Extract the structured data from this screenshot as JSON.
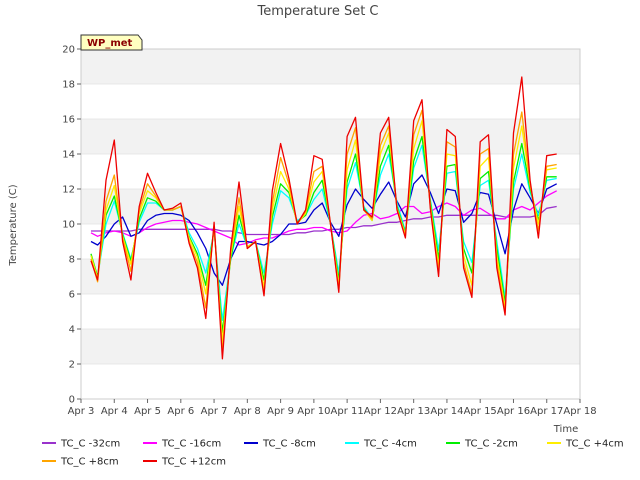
{
  "chart_data": {
    "type": "line",
    "title": "Temperature Set C",
    "xlabel": "Time",
    "ylabel": "Temperature (C)",
    "badge": "WP_met",
    "x_ticks": [
      "Apr 3",
      "Apr 4",
      "Apr 5",
      "Apr 6",
      "Apr 7",
      "Apr 8",
      "Apr 9",
      "Apr 10",
      "Apr 11",
      "Apr 12",
      "Apr 13",
      "Apr 14",
      "Apr 15",
      "Apr 16",
      "Apr 17",
      "Apr 18"
    ],
    "xlim": [
      3,
      18
    ],
    "ylim": [
      0,
      20
    ],
    "y_ticks": [
      0,
      2,
      4,
      6,
      8,
      10,
      12,
      14,
      16,
      18,
      20
    ],
    "grid": "horizontal bands",
    "legend_position": "bottom",
    "x_days": [
      3.3,
      3.5,
      3.75,
      4.0,
      4.25,
      4.5,
      4.75,
      5.0,
      5.25,
      5.5,
      5.75,
      6.0,
      6.25,
      6.5,
      6.75,
      7.0,
      7.25,
      7.5,
      7.75,
      8.0,
      8.25,
      8.5,
      8.75,
      9.0,
      9.25,
      9.5,
      9.75,
      10.0,
      10.25,
      10.5,
      10.75,
      11.0,
      11.25,
      11.5,
      11.75,
      12.0,
      12.25,
      12.5,
      12.75,
      13.0,
      13.25,
      13.5,
      13.75,
      14.0,
      14.25,
      14.5,
      14.75,
      15.0,
      15.25,
      15.5,
      15.75,
      16.0,
      16.25,
      16.5,
      16.75,
      17.0,
      17.3
    ],
    "series": [
      {
        "name": "TC_C -32cm",
        "color": "#9932cc",
        "values": [
          9.6,
          9.6,
          9.6,
          9.6,
          9.6,
          9.6,
          9.7,
          9.7,
          9.7,
          9.7,
          9.7,
          9.7,
          9.7,
          9.7,
          9.7,
          9.7,
          9.6,
          9.6,
          9.5,
          9.4,
          9.4,
          9.4,
          9.4,
          9.4,
          9.4,
          9.5,
          9.5,
          9.6,
          9.6,
          9.7,
          9.7,
          9.8,
          9.8,
          9.9,
          9.9,
          10.0,
          10.1,
          10.1,
          10.2,
          10.3,
          10.3,
          10.4,
          10.4,
          10.5,
          10.5,
          10.5,
          10.5,
          10.5,
          10.5,
          10.5,
          10.4,
          10.4,
          10.4,
          10.4,
          10.5,
          10.9,
          11.0
        ]
      },
      {
        "name": "TC_C -16cm",
        "color": "#ff00ff",
        "values": [
          9.5,
          9.3,
          9.5,
          9.6,
          9.5,
          9.3,
          9.5,
          9.8,
          10.0,
          10.1,
          10.2,
          10.2,
          10.1,
          10.0,
          9.8,
          9.6,
          9.4,
          9.2,
          8.8,
          8.9,
          9.1,
          9.2,
          9.2,
          9.4,
          9.6,
          9.7,
          9.7,
          9.8,
          9.8,
          9.6,
          9.5,
          9.6,
          10.1,
          10.5,
          10.6,
          10.3,
          10.4,
          10.6,
          11.0,
          11.0,
          10.6,
          10.7,
          11.0,
          11.2,
          11.0,
          10.5,
          10.8,
          10.9,
          10.6,
          10.3,
          10.3,
          10.8,
          11.0,
          10.8,
          11.2,
          11.6,
          11.9
        ]
      },
      {
        "name": "TC_C -8cm",
        "color": "#0000cd",
        "values": [
          9.0,
          8.8,
          9.3,
          10.0,
          10.4,
          9.3,
          9.5,
          10.2,
          10.5,
          10.6,
          10.6,
          10.5,
          10.2,
          9.5,
          8.6,
          7.2,
          6.5,
          8.0,
          9.0,
          9.0,
          8.9,
          8.8,
          9.0,
          9.4,
          10.0,
          10.0,
          10.1,
          10.8,
          11.2,
          10.1,
          9.3,
          11.1,
          12.0,
          11.4,
          10.9,
          11.7,
          12.4,
          11.3,
          10.4,
          12.3,
          12.8,
          11.8,
          10.6,
          12.0,
          11.9,
          10.1,
          10.6,
          11.8,
          11.7,
          10.0,
          8.3,
          10.8,
          12.3,
          11.5,
          10.6,
          12.0,
          12.3
        ]
      },
      {
        "name": "TC_C -4cm",
        "color": "#00ffff",
        "values": [
          8.2,
          7.0,
          10.0,
          11.3,
          9.5,
          8.0,
          10.1,
          11.2,
          11.2,
          10.8,
          10.8,
          11.0,
          9.5,
          8.6,
          7.2,
          9.6,
          4.5,
          8.0,
          10.0,
          8.7,
          9.0,
          7.2,
          10.0,
          11.9,
          11.5,
          10.2,
          10.5,
          11.4,
          12.0,
          10.0,
          7.2,
          12.0,
          13.5,
          11.0,
          10.3,
          12.8,
          14.0,
          11.2,
          9.6,
          13.2,
          14.5,
          11.4,
          8.5,
          12.9,
          13.0,
          9.0,
          7.8,
          12.2,
          12.5,
          9.0,
          5.8,
          12.0,
          14.0,
          11.8,
          10.5,
          12.5,
          12.6
        ]
      },
      {
        "name": "TC_C -2cm",
        "color": "#00ee00",
        "values": [
          8.3,
          7.0,
          10.5,
          11.6,
          9.4,
          7.9,
          10.3,
          11.5,
          11.3,
          10.8,
          10.8,
          11.0,
          9.3,
          8.3,
          6.5,
          9.7,
          3.8,
          8.0,
          10.5,
          8.7,
          9.0,
          6.8,
          10.4,
          12.3,
          11.8,
          10.1,
          10.5,
          11.8,
          12.5,
          10.0,
          6.8,
          12.4,
          14.0,
          10.9,
          10.2,
          13.3,
          14.5,
          11.0,
          9.5,
          13.6,
          15.0,
          11.3,
          8.0,
          13.3,
          13.4,
          8.6,
          7.2,
          12.6,
          13.0,
          8.6,
          5.5,
          12.4,
          14.6,
          12.0,
          10.2,
          12.7,
          12.7
        ]
      },
      {
        "name": "TC_C +4cm",
        "color": "#ffee00",
        "values": [
          8.2,
          6.9,
          10.8,
          12.2,
          9.3,
          7.7,
          10.6,
          11.9,
          11.5,
          10.8,
          10.8,
          11.0,
          9.2,
          8.1,
          6.0,
          9.8,
          3.3,
          8.2,
          11.0,
          8.7,
          9.0,
          6.4,
          10.8,
          13.0,
          12.0,
          10.0,
          10.6,
          12.4,
          13.0,
          10.0,
          6.5,
          13.1,
          14.8,
          10.8,
          10.2,
          14.0,
          15.2,
          10.9,
          9.4,
          14.3,
          15.9,
          11.1,
          7.6,
          14.0,
          13.9,
          8.2,
          6.5,
          13.3,
          13.8,
          8.2,
          5.2,
          13.2,
          15.6,
          12.2,
          10.0,
          13.1,
          13.2
        ]
      },
      {
        "name": "TC_C +8cm",
        "color": "#ffa500",
        "values": [
          8.0,
          6.7,
          11.3,
          12.8,
          9.2,
          7.3,
          10.8,
          12.3,
          11.6,
          10.8,
          10.8,
          11.0,
          9.0,
          7.8,
          5.2,
          9.9,
          2.7,
          8.4,
          11.5,
          8.6,
          9.0,
          6.0,
          11.2,
          13.8,
          12.3,
          10.0,
          10.7,
          13.0,
          13.3,
          10.0,
          6.2,
          14.0,
          15.5,
          10.8,
          10.3,
          14.5,
          15.6,
          10.9,
          9.3,
          15.1,
          16.5,
          11.0,
          7.2,
          14.7,
          14.4,
          7.8,
          6.0,
          14.0,
          14.3,
          7.8,
          5.0,
          14.0,
          16.4,
          12.3,
          9.6,
          13.3,
          13.4
        ]
      },
      {
        "name": "TC_C +12cm",
        "color": "#ee0000",
        "values": [
          7.9,
          6.8,
          12.5,
          14.8,
          9.0,
          6.8,
          11.0,
          12.9,
          11.8,
          10.8,
          10.9,
          11.2,
          8.9,
          7.5,
          4.6,
          10.1,
          2.3,
          8.6,
          12.4,
          8.6,
          9.0,
          5.9,
          11.9,
          14.6,
          12.6,
          10.0,
          10.8,
          13.9,
          13.7,
          10.0,
          6.1,
          15.0,
          16.1,
          10.8,
          10.4,
          15.2,
          16.1,
          10.8,
          9.2,
          15.9,
          17.1,
          10.9,
          7.0,
          15.4,
          15.0,
          7.5,
          5.8,
          14.7,
          15.1,
          7.5,
          4.8,
          15.2,
          18.4,
          12.5,
          9.2,
          13.9,
          14.0
        ]
      }
    ]
  }
}
